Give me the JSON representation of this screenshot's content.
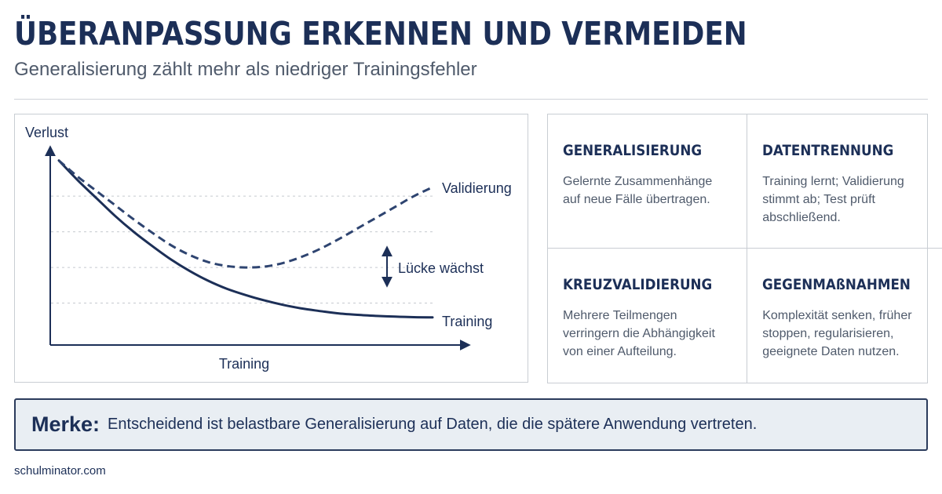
{
  "header": {
    "title": "ÜBERANPASSUNG ERKENNEN UND VERMEIDEN",
    "subtitle": "Generalisierung zählt mehr als niedriger Trainingsfehler"
  },
  "chart_data": {
    "type": "line",
    "xlabel": "Training",
    "ylabel": "Verlust",
    "x": [
      0,
      1,
      2,
      3,
      4,
      5,
      6,
      7,
      8,
      9,
      10,
      11,
      12,
      13,
      14,
      15,
      16,
      17,
      18,
      19,
      20
    ],
    "series": [
      {
        "name": "Training",
        "values": [
          10.0,
          8.9,
          7.9,
          6.9,
          6.0,
          5.2,
          4.45,
          3.8,
          3.25,
          2.8,
          2.45,
          2.15,
          1.9,
          1.7,
          1.55,
          1.42,
          1.34,
          1.28,
          1.24,
          1.21,
          1.2
        ],
        "style": "solid"
      },
      {
        "name": "Validierung",
        "values": [
          10.0,
          9.1,
          8.3,
          7.5,
          6.7,
          5.95,
          5.25,
          4.7,
          4.3,
          4.08,
          4.0,
          4.05,
          4.25,
          4.6,
          5.05,
          5.6,
          6.2,
          6.8,
          7.4,
          8.0,
          8.5
        ],
        "style": "dashed"
      }
    ],
    "annotation": "Lücke wächst",
    "grid": "horizontal-dashed",
    "ylim": [
      0,
      11
    ],
    "xlim": [
      0,
      20
    ]
  },
  "cards": [
    {
      "title": "GENERALISIERUNG",
      "text": "Gelernte Zusammenhänge auf neue Fälle übertragen."
    },
    {
      "title": "DATENTRENNUNG",
      "text": "Training lernt; Validierung stimmt ab; Test prüft abschließend."
    },
    {
      "title": "KREUZVALIDIERUNG",
      "text": "Mehrere Teilmengen verringern die Abhängigkeit von einer Aufteilung."
    },
    {
      "title": "GEGENMAßNAHMEN",
      "text": "Komplexität senken, früher stoppen, regularisieren, geeignete Daten nutzen."
    }
  ],
  "merke": {
    "label": "Merke:",
    "text": "Entscheidend ist belastbare Generalisierung auf Daten, die die spätere Anwendung vertreten."
  },
  "footer": {
    "source": "schulminator.com"
  },
  "colors": {
    "primary": "#1c2f57",
    "text_muted": "#4f5a6b",
    "border": "#c9cdd3",
    "callout_bg": "#e9eef3",
    "grid": "#c5c9cf"
  }
}
